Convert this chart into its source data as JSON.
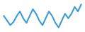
{
  "values": [
    55,
    45,
    35,
    42,
    55,
    65,
    50,
    40,
    55,
    70,
    60,
    45,
    35,
    50,
    65,
    55,
    40,
    30,
    45,
    60,
    50,
    60,
    75,
    65,
    80
  ],
  "line_color": "#3d9cd4",
  "linewidth": 1.5,
  "background_color": "#ffffff",
  "ylim": [
    20,
    90
  ]
}
